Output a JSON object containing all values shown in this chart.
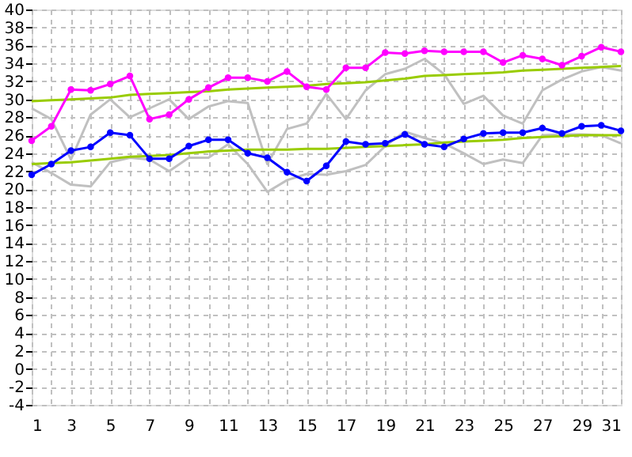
{
  "chart_data": {
    "type": "line",
    "x": [
      1,
      2,
      3,
      4,
      5,
      6,
      7,
      8,
      9,
      10,
      11,
      12,
      13,
      14,
      15,
      16,
      17,
      18,
      19,
      20,
      21,
      22,
      23,
      24,
      25,
      26,
      27,
      28,
      29,
      30,
      31
    ],
    "series": [
      {
        "color": "#c0c0c0",
        "marker": "none",
        "values": [
          29,
          27.8,
          23.3,
          28.3,
          30,
          28,
          29,
          30,
          27.8,
          29.2,
          29.8,
          29.6,
          22.8,
          26.7,
          27.3,
          30.6,
          27.8,
          31,
          32.8,
          33.4,
          34.5,
          32.8,
          29.5,
          30.4,
          28.2,
          27.3,
          31,
          32.2,
          33.1,
          33.6,
          33.2
        ]
      },
      {
        "color": "#c0c0c0",
        "marker": "none",
        "values": [
          23,
          21.8,
          20.5,
          20.3,
          23,
          23.5,
          23.3,
          22,
          23.5,
          23.5,
          25,
          22.8,
          19.7,
          21,
          21.7,
          21.6,
          22,
          22.7,
          24.8,
          26.4,
          25.7,
          25.1,
          24,
          22.8,
          23.3,
          22.9,
          26,
          26.1,
          26.1,
          26,
          25.1
        ]
      },
      {
        "color": "#99cc00",
        "marker": "none",
        "values": [
          29.8,
          29.9,
          30,
          30.1,
          30.2,
          30.5,
          30.6,
          30.7,
          30.8,
          30.9,
          31.1,
          31.2,
          31.3,
          31.4,
          31.5,
          31.7,
          31.8,
          31.9,
          32.1,
          32.3,
          32.6,
          32.7,
          32.8,
          32.9,
          33,
          33.2,
          33.3,
          33.4,
          33.5,
          33.6,
          33.7
        ]
      },
      {
        "color": "#99cc00",
        "marker": "none",
        "values": [
          22.8,
          22.9,
          23,
          23.2,
          23.4,
          23.6,
          23.7,
          23.8,
          24,
          24.2,
          24.3,
          24.4,
          24.4,
          24.4,
          24.5,
          24.5,
          24.6,
          24.7,
          24.8,
          24.9,
          25,
          25.2,
          25.3,
          25.4,
          25.5,
          25.7,
          25.8,
          25.9,
          26,
          26,
          26
        ]
      },
      {
        "color": "#0000ff",
        "marker": "circle",
        "values": [
          21.6,
          22.8,
          24.3,
          24.7,
          26.3,
          26,
          23.4,
          23.4,
          24.8,
          25.5,
          25.5,
          24,
          23.5,
          21.9,
          20.9,
          22.6,
          25.3,
          25,
          25.1,
          26.1,
          25,
          24.7,
          25.6,
          26.2,
          26.3,
          26.3,
          26.8,
          26.2,
          27,
          27.1,
          26.5
        ]
      },
      {
        "color": "#ff00ff",
        "marker": "circle",
        "values": [
          25.4,
          27,
          31.1,
          31,
          31.7,
          32.6,
          27.8,
          28.3,
          30,
          31.3,
          32.4,
          32.4,
          32,
          33.1,
          31.4,
          31.1,
          33.5,
          33.5,
          35.2,
          35.1,
          35.4,
          35.3,
          35.3,
          35.3,
          34.1,
          34.9,
          34.5,
          33.8,
          34.8,
          35.8,
          35.3
        ]
      }
    ],
    "xlim": [
      1,
      31
    ],
    "xticks": [
      1,
      {
        "value": 2,
        "label": null
      },
      3,
      {
        "value": 4,
        "label": null
      },
      5,
      {
        "value": 6,
        "label": null
      },
      7,
      {
        "value": 8,
        "label": null
      },
      9,
      {
        "value": 10,
        "label": null
      },
      11,
      {
        "value": 12,
        "label": null
      },
      13,
      {
        "value": 14,
        "label": null
      },
      15,
      {
        "value": 16,
        "label": null
      },
      17,
      {
        "value": 18,
        "label": null
      },
      19,
      {
        "value": 20,
        "label": null
      },
      21,
      {
        "value": 22,
        "label": null
      },
      23,
      {
        "value": 24,
        "label": null
      },
      25,
      {
        "value": 26,
        "label": null
      },
      27,
      {
        "value": 28,
        "label": null
      },
      29,
      {
        "value": 30,
        "label": null
      },
      31
    ],
    "ylim": [
      -4,
      40
    ],
    "yticks": [
      -4,
      -2,
      0,
      2,
      4,
      6,
      8,
      10,
      12,
      14,
      16,
      18,
      20,
      22,
      24,
      26,
      28,
      30,
      32,
      34,
      36,
      38,
      40
    ],
    "grid": true,
    "line_style": "solid"
  }
}
